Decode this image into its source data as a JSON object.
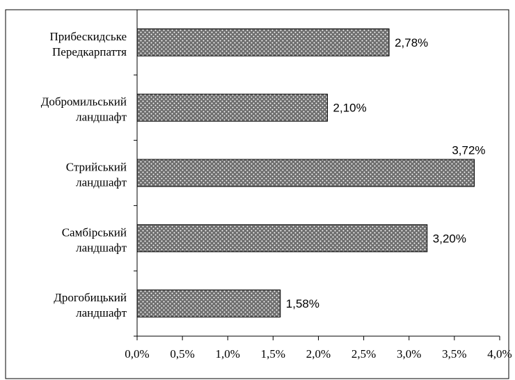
{
  "chart_data": {
    "type": "bar",
    "orientation": "horizontal",
    "categories": [
      [
        "Прибескидське",
        "Передкарпаття"
      ],
      [
        "Добромильський",
        "ландшафт"
      ],
      [
        "Стрийський",
        "ландшафт"
      ],
      [
        "Самбірський",
        "ландшафт"
      ],
      [
        "Дрогобицький",
        "ландшафт"
      ]
    ],
    "values": [
      2.78,
      2.1,
      3.72,
      3.2,
      1.58
    ],
    "data_labels": [
      "2,78%",
      "2,10%",
      "3,72%",
      "3,20%",
      "1,58%"
    ],
    "x_ticks": [
      "0,0%",
      "0,5%",
      "1,0%",
      "1,5%",
      "2,0%",
      "2,5%",
      "3,0%",
      "3,5%",
      "4,0%"
    ],
    "xlim": [
      0,
      4.0
    ],
    "grid": false,
    "legend": "none",
    "colors": {
      "bar_fill": "#6e6e6e",
      "bar_dots": "#ffffff",
      "bar_stroke": "#000000",
      "axis": "#000000",
      "frame": "#000000"
    }
  }
}
